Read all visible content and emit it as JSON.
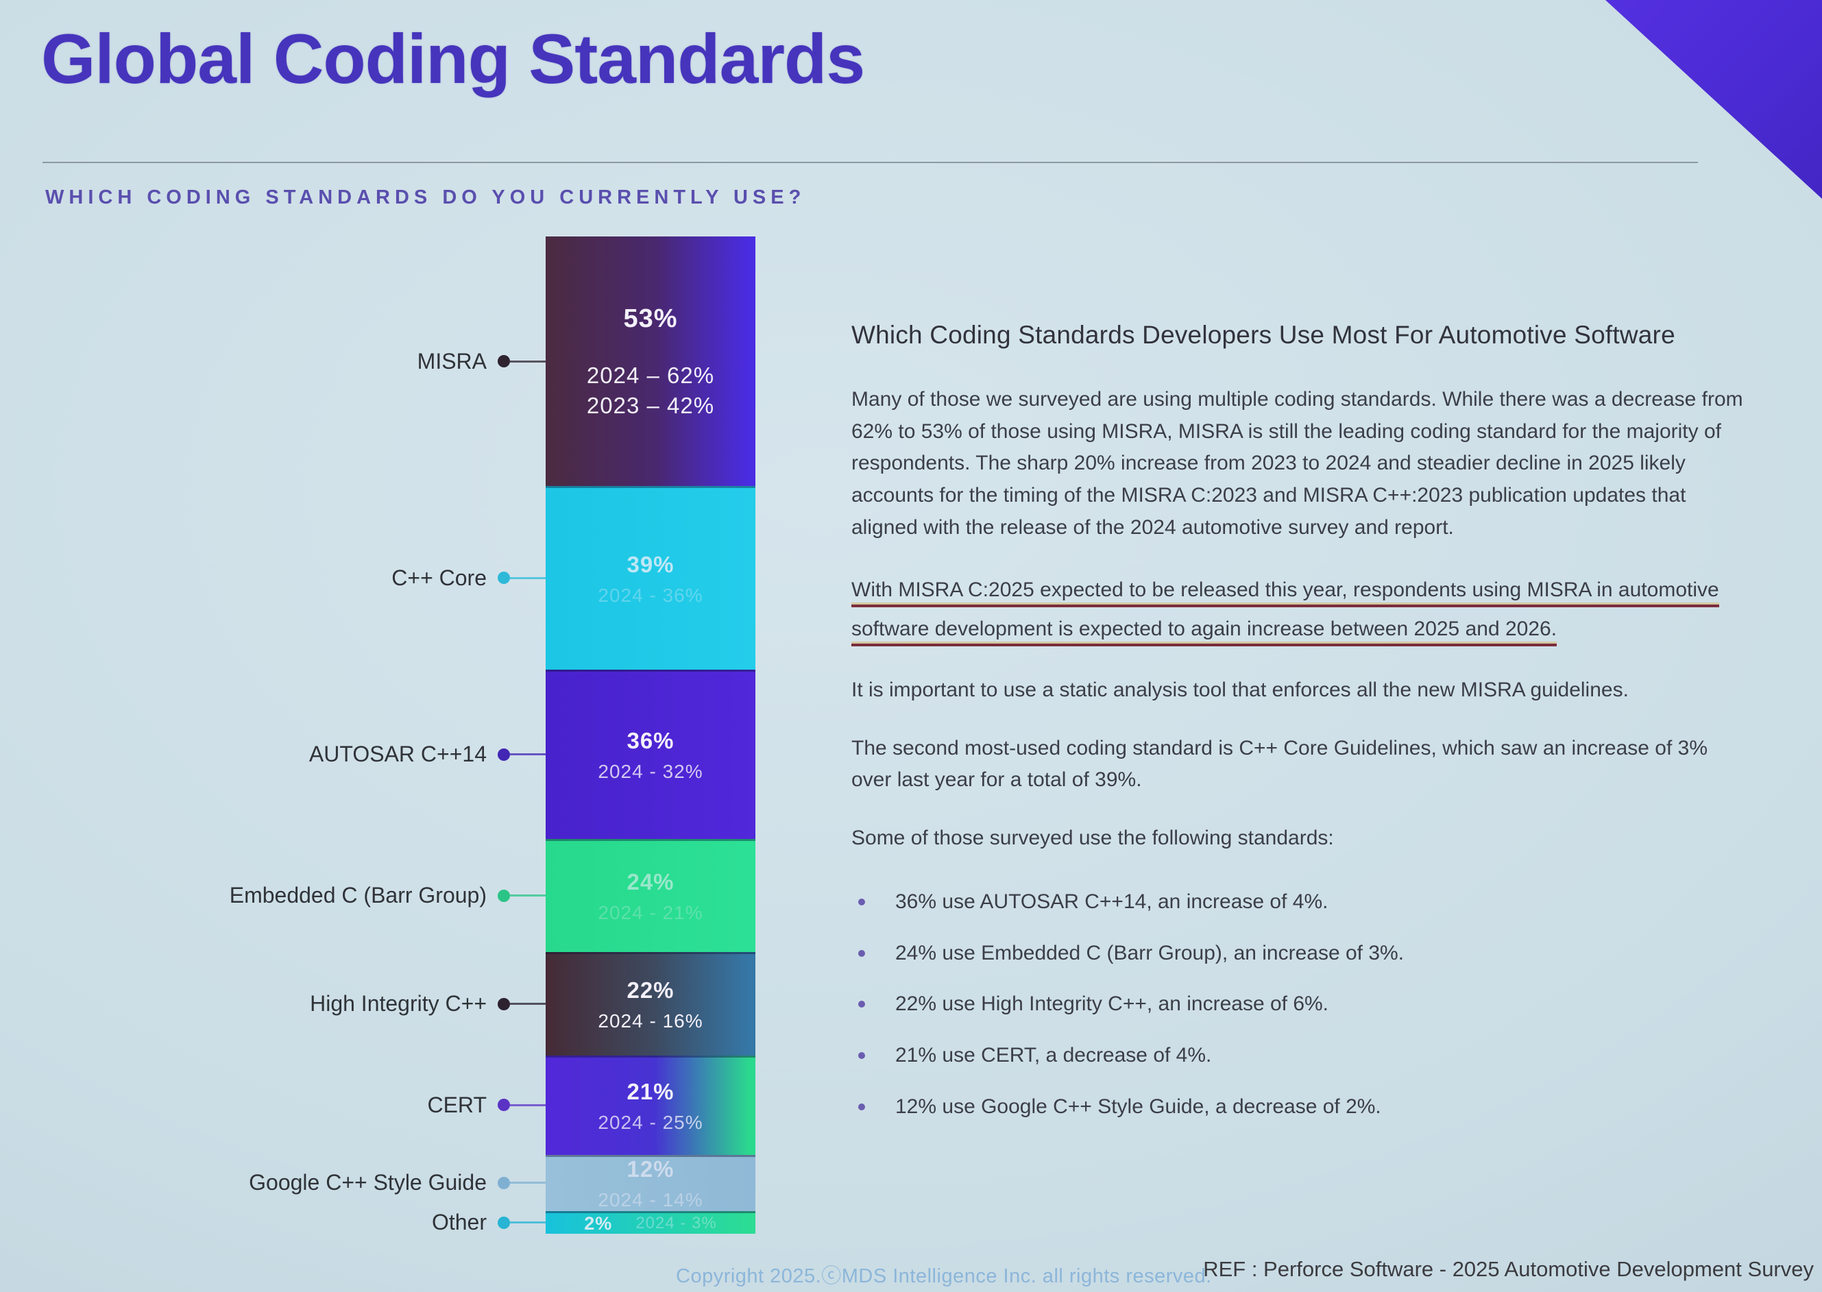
{
  "slide": {
    "title": "Global Coding Standards",
    "question": "WHICH CODING STANDARDS DO YOU CURRENTLY USE?",
    "accent_color": "#4634bc",
    "corner_triangle_color": "#4a2ad2",
    "background_color": "#cbdde5"
  },
  "chart_data": {
    "type": "bar",
    "variant": "stacked-vertical-single-column",
    "title": "WHICH CODING STANDARDS DO YOU CURRENTLY USE?",
    "unit": "%",
    "legend_position": "none",
    "categories": [
      "MISRA",
      "C++ Core",
      "AUTOSAR C++14",
      "Embedded C (Barr Group)",
      "High Integrity C++",
      "CERT",
      "Google C++ Style Guide",
      "Other"
    ],
    "series": [
      {
        "name": "2025",
        "values": [
          53,
          39,
          36,
          24,
          22,
          21,
          12,
          2
        ]
      },
      {
        "name": "2024",
        "values": [
          62,
          36,
          32,
          21,
          16,
          25,
          14,
          3
        ]
      },
      {
        "name": "2023",
        "values": [
          42,
          null,
          null,
          null,
          null,
          null,
          null,
          null
        ]
      }
    ],
    "rows": [
      {
        "label": "MISRA",
        "value": 53,
        "pct": "53%",
        "history": [
          "2024 – 62%",
          "2023 – 42%"
        ],
        "colors": {
          "start": "#4b2b40",
          "mid": "#49286e",
          "end": "#4a2ce2",
          "dot": "#2f2430"
        }
      },
      {
        "label": "C++ Core",
        "value": 39,
        "pct": "39%",
        "history": [
          "2024 - 36%"
        ],
        "colors": {
          "start": "#1cc6e4",
          "end": "#24cdea",
          "dot": "#2fb9d8"
        }
      },
      {
        "label": "AUTOSAR C++14",
        "value": 36,
        "pct": "36%",
        "history": [
          "2024 - 32%"
        ],
        "colors": {
          "start": "#4822cc",
          "end": "#5128da",
          "dot": "#4326b4"
        }
      },
      {
        "label": "Embedded C (Barr Group)",
        "value": 24,
        "pct": "24%",
        "history": [
          "2024 - 21%"
        ],
        "colors": {
          "start": "#27d98c",
          "end": "#2ce096",
          "dot": "#2bc487"
        }
      },
      {
        "label": "High Integrity C++",
        "value": 22,
        "pct": "22%",
        "history": [
          "2024 - 16%"
        ],
        "colors": {
          "start": "#462a36",
          "mid": "#3d4a60",
          "end": "#3577a6",
          "dot": "#2c2230"
        }
      },
      {
        "label": "CERT",
        "value": 21,
        "pct": "21%",
        "history": [
          "2024 - 25%"
        ],
        "colors": {
          "start": "#5228d8",
          "mid": "#4733d2",
          "end": "#2bd98e",
          "dot": "#5b33c4"
        }
      },
      {
        "label": "Google C++ Style Guide",
        "value": 12,
        "pct": "12%",
        "history": [
          "2024 - 14%"
        ],
        "colors": {
          "start": "#98c0da",
          "end": "#8fb9d6",
          "dot": "#7fb0d2"
        }
      },
      {
        "label": "Other",
        "value": 2,
        "pct": "2%",
        "history": [
          "2024 - 3%"
        ],
        "colors": {
          "start": "#18c2dc",
          "end": "#2cdd92",
          "dot": "#28b4d4"
        }
      }
    ]
  },
  "commentary": {
    "heading": "Which Coding Standards Developers Use Most For Automotive Software",
    "paragraph1": "Many of those we surveyed are using multiple coding standards. While there was a decrease from 62% to 53% of those using MISRA, MISRA is still the leading coding standard for the majority of respondents. The sharp 20% increase from 2023 to 2024 and steadier decline in 2025 likely accounts for the timing of the MISRA C:2023 and MISRA C++:2023 publication updates that aligned with the release of the 2024 automotive survey and report.",
    "underlined_note": "With MISRA C:2025 expected to be released this year, respondents using MISRA in automotive software development is expected to again increase between 2025 and 2026.",
    "paragraph2": "It is important to use a static analysis tool that enforces all the new MISRA guidelines.",
    "paragraph3": "The second most-used coding standard is C++ Core Guidelines, which saw an increase of 3% over last year for a total of 39%.",
    "bullets_intro": "Some of those surveyed use the following standards:",
    "bullets": [
      "36% use AUTOSAR C++14, an increase of 4%.",
      "24% use Embedded C (Barr Group), an increase of 3%.",
      "22% use High Integrity C++, an increase of 6%.",
      "21% use CERT, a decrease of 4%.",
      "12% use Google C++ Style Guide, a decrease of 2%."
    ]
  },
  "footer": {
    "copyright": "Copyright 2025.ⓒMDS Intelligence Inc. all rights reserved.",
    "reference": "REF : Perforce Software - 2025 Automotive Development Survey"
  }
}
